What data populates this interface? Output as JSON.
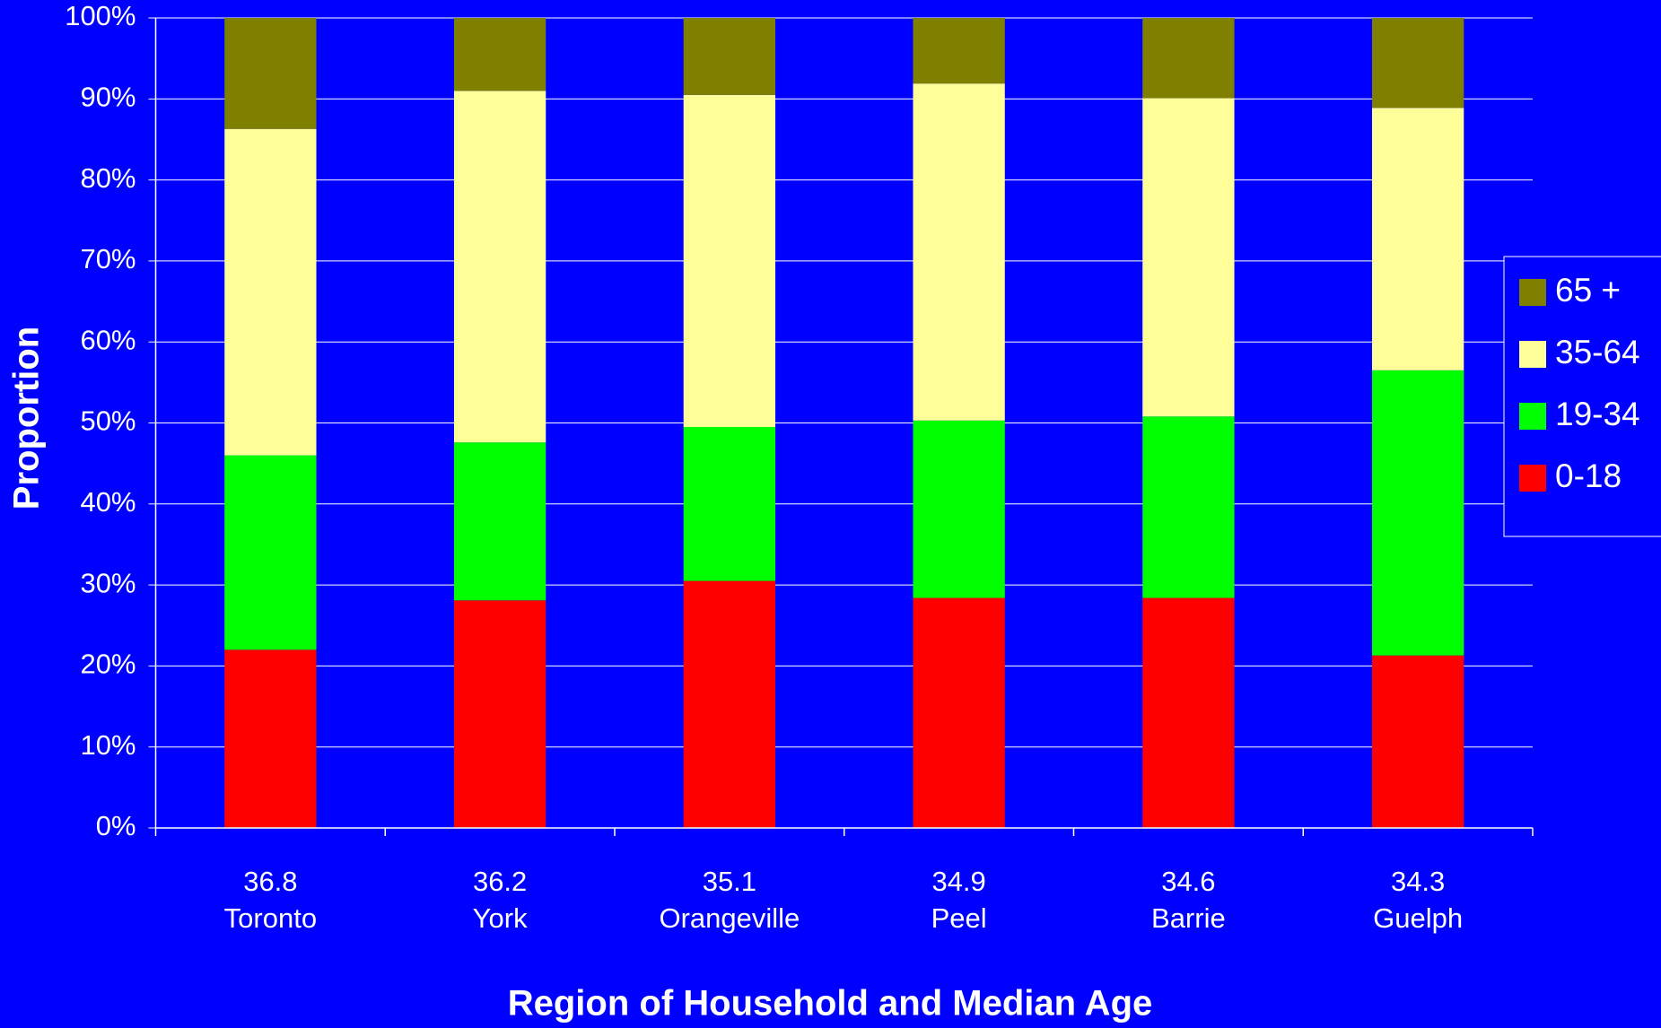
{
  "chart_data": {
    "type": "stacked_bar",
    "x_label": "Region of Household and Median Age",
    "y_label": "Proportion",
    "categories": [
      "Toronto",
      "York",
      "Orangeville",
      "Peel",
      "Barrie",
      "Guelph"
    ],
    "median_age": [
      36.8,
      36.2,
      35.1,
      34.9,
      34.6,
      34.3
    ],
    "series": [
      {
        "name": "0-18",
        "color": "#ff0000",
        "values": [
          22.0,
          28.1,
          30.5,
          28.4,
          28.4,
          21.3
        ]
      },
      {
        "name": "19-34",
        "color": "#00ff00",
        "values": [
          24.0,
          19.5,
          19.0,
          21.9,
          22.4,
          35.2
        ]
      },
      {
        "name": "35-64",
        "color": "#ffff99",
        "values": [
          40.3,
          43.4,
          41.0,
          41.6,
          39.3,
          32.4
        ]
      },
      {
        "name": "65 +",
        "color": "#808000",
        "values": [
          13.7,
          9.0,
          9.5,
          8.1,
          9.9,
          11.1
        ]
      }
    ],
    "ylim": [
      0,
      100
    ],
    "yticks": [
      {
        "value": 0,
        "label": "0%"
      },
      {
        "value": 10,
        "label": "10%"
      },
      {
        "value": 20,
        "label": "20%"
      },
      {
        "value": 30,
        "label": "30%"
      },
      {
        "value": 40,
        "label": "40%"
      },
      {
        "value": 50,
        "label": "50%"
      },
      {
        "value": 60,
        "label": "60%"
      },
      {
        "value": 70,
        "label": "70%"
      },
      {
        "value": 80,
        "label": "80%"
      },
      {
        "value": 90,
        "label": "90%"
      },
      {
        "value": 100,
        "label": "100%"
      }
    ],
    "grid": true,
    "legend": "right"
  }
}
